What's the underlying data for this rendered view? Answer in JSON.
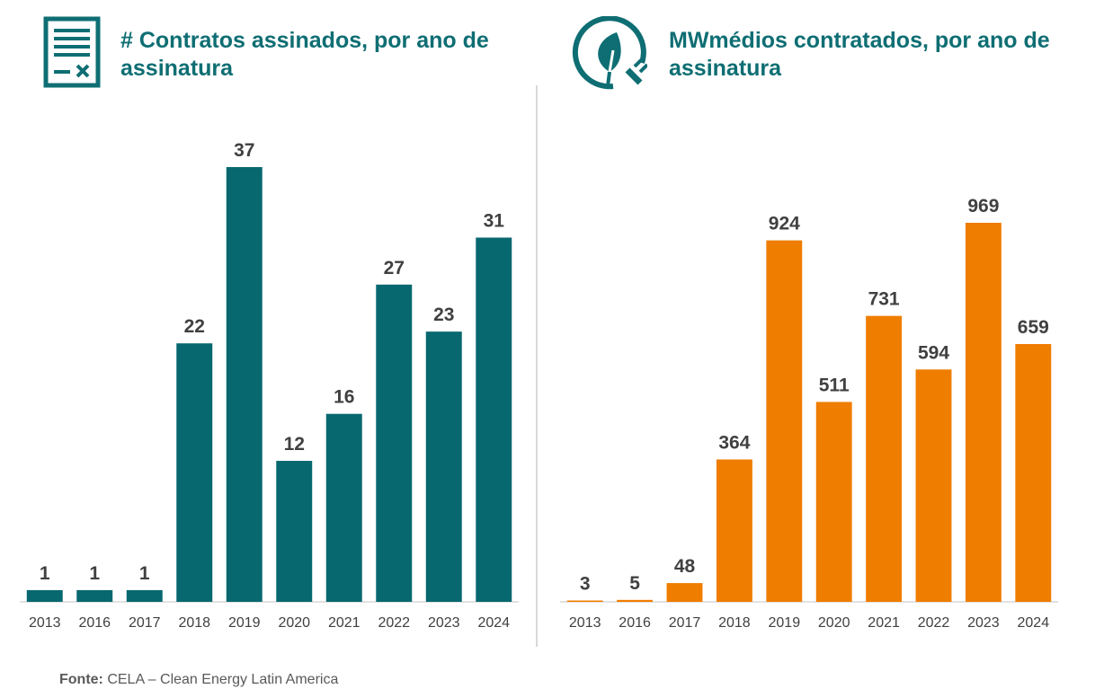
{
  "colors": {
    "left_bars": "#07686f",
    "right_bars": "#ef7d00",
    "title": "#0e6e73",
    "labels": "#404040",
    "axis": "#d9d9d9"
  },
  "left_panel": {
    "title": "# Contratos assinados, por ano de assinatura",
    "icon": "contract-document-icon"
  },
  "right_panel": {
    "title": "MWmédios contratados, por ano de assinatura",
    "icon": "leaf-plug-icon"
  },
  "source": {
    "label": "Fonte:",
    "text": " CELA – Clean Energy Latin America"
  },
  "chart_data": [
    {
      "type": "bar",
      "title": "# Contratos assinados, por ano de assinatura",
      "categories": [
        "2013",
        "2016",
        "2017",
        "2018",
        "2019",
        "2020",
        "2021",
        "2022",
        "2023",
        "2024"
      ],
      "values": [
        1,
        1,
        1,
        22,
        37,
        12,
        16,
        27,
        23,
        31
      ],
      "data_labels": true,
      "grid": false,
      "ylim": [
        0,
        37
      ]
    },
    {
      "type": "bar",
      "title": "MWmédios contratados, por ano de assinatura",
      "categories": [
        "2013",
        "2016",
        "2017",
        "2018",
        "2019",
        "2020",
        "2021",
        "2022",
        "2023",
        "2024"
      ],
      "values": [
        3,
        5,
        48,
        364,
        924,
        511,
        731,
        594,
        969,
        659
      ],
      "data_labels": true,
      "grid": false,
      "ylim": [
        0,
        969
      ]
    }
  ]
}
